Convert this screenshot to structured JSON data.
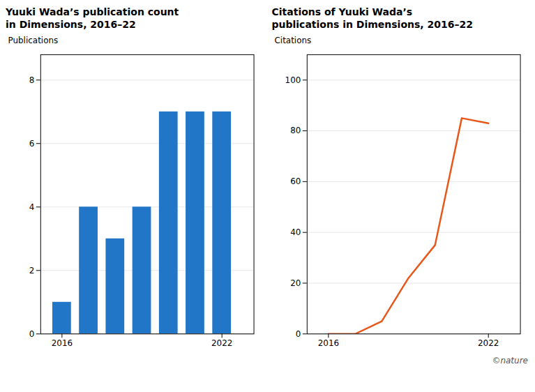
{
  "chart_data": [
    {
      "type": "bar",
      "title": "Yuuki Wada’s publication count\nin Dimensions, 2016–22",
      "x": [
        2016,
        2017,
        2018,
        2019,
        2020,
        2021,
        2022
      ],
      "values": [
        1,
        4,
        3,
        4,
        7,
        7,
        7
      ],
      "color": "#2176c7",
      "xlim": [
        2015.2,
        2023.2
      ],
      "xticks": [
        2016,
        2022
      ],
      "ylabel": "Publications",
      "ylim": [
        0,
        8.8
      ],
      "yticks": [
        0,
        2,
        4,
        6,
        8
      ],
      "grid": true
    },
    {
      "type": "line",
      "title": "Citations of Yuuki Wada’s\npublications in Dimensions, 2016–22",
      "x": [
        2016,
        2017,
        2018,
        2019,
        2020,
        2021,
        2022
      ],
      "values": [
        0,
        0,
        5,
        22,
        35,
        85,
        83
      ],
      "color": "#e8571a",
      "xlim": [
        2015.2,
        2023.2
      ],
      "xticks": [
        2016,
        2022
      ],
      "ylabel": "Citations",
      "ylim": [
        0,
        110
      ],
      "yticks": [
        0,
        20,
        40,
        60,
        80,
        100
      ],
      "grid": true,
      "annotation": "©nature"
    }
  ]
}
